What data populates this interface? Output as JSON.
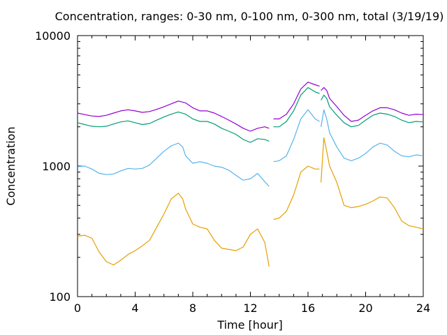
{
  "chart_data": {
    "type": "line",
    "title": "Concentration, ranges: 0-30 nm, 0-100 nm, 0-300 nm, total (3/19/19)",
    "xlabel": "Time [hour]",
    "ylabel": "Concentration",
    "xlim": [
      0,
      24
    ],
    "ylim": [
      100,
      10000
    ],
    "y_scale": "log",
    "grid": false,
    "x_ticks": [
      0,
      4,
      8,
      12,
      16,
      20,
      24
    ],
    "x_tick_labels": [
      "0",
      "4",
      "8",
      "12",
      "16",
      "20",
      "24"
    ],
    "y_ticks": [
      100,
      1000,
      10000
    ],
    "y_tick_labels": [
      "100",
      "1000",
      "10000"
    ],
    "series": [
      {
        "color": "#9400d3",
        "segments": [
          [
            [
              0,
              2550
            ],
            [
              0.5,
              2480
            ],
            [
              1,
              2420
            ],
            [
              1.5,
              2400
            ],
            [
              2,
              2450
            ],
            [
              2.5,
              2550
            ],
            [
              3,
              2650
            ],
            [
              3.5,
              2700
            ],
            [
              4,
              2650
            ],
            [
              4.5,
              2580
            ],
            [
              5,
              2620
            ],
            [
              5.5,
              2720
            ],
            [
              6,
              2850
            ],
            [
              6.5,
              3000
            ],
            [
              7,
              3150
            ],
            [
              7.5,
              3050
            ],
            [
              8,
              2800
            ],
            [
              8.5,
              2650
            ],
            [
              9,
              2650
            ],
            [
              9.5,
              2550
            ],
            [
              10,
              2400
            ],
            [
              10.5,
              2250
            ],
            [
              11,
              2100
            ],
            [
              11.5,
              1950
            ],
            [
              12,
              1850
            ],
            [
              12.5,
              1950
            ],
            [
              13,
              2000
            ],
            [
              13.3,
              1950
            ]
          ],
          [
            [
              13.6,
              2300
            ],
            [
              14,
              2300
            ],
            [
              14.5,
              2500
            ],
            [
              15,
              3000
            ],
            [
              15.5,
              3900
            ],
            [
              16,
              4400
            ],
            [
              16.5,
              4200
            ],
            [
              16.8,
              4100
            ]
          ],
          [
            [
              16.9,
              3800
            ],
            [
              17.1,
              4000
            ],
            [
              17.3,
              3800
            ],
            [
              17.5,
              3300
            ],
            [
              18,
              2850
            ],
            [
              18.5,
              2450
            ],
            [
              19,
              2200
            ],
            [
              19.5,
              2250
            ],
            [
              20,
              2450
            ],
            [
              20.5,
              2650
            ],
            [
              21,
              2800
            ],
            [
              21.5,
              2800
            ],
            [
              22,
              2700
            ],
            [
              22.5,
              2550
            ],
            [
              23,
              2450
            ],
            [
              23.5,
              2500
            ],
            [
              24,
              2480
            ]
          ]
        ]
      },
      {
        "color": "#009e73",
        "segments": [
          [
            [
              0,
              2150
            ],
            [
              0.5,
              2080
            ],
            [
              1,
              2020
            ],
            [
              1.5,
              2000
            ],
            [
              2,
              2020
            ],
            [
              2.5,
              2100
            ],
            [
              3,
              2180
            ],
            [
              3.5,
              2220
            ],
            [
              4,
              2150
            ],
            [
              4.5,
              2080
            ],
            [
              5,
              2120
            ],
            [
              5.5,
              2250
            ],
            [
              6,
              2380
            ],
            [
              6.5,
              2500
            ],
            [
              7,
              2600
            ],
            [
              7.5,
              2500
            ],
            [
              8,
              2300
            ],
            [
              8.5,
              2200
            ],
            [
              9,
              2200
            ],
            [
              9.5,
              2100
            ],
            [
              10,
              1950
            ],
            [
              10.5,
              1850
            ],
            [
              11,
              1750
            ],
            [
              11.5,
              1600
            ],
            [
              12,
              1520
            ],
            [
              12.5,
              1620
            ],
            [
              13,
              1600
            ],
            [
              13.3,
              1550
            ]
          ],
          [
            [
              13.6,
              2000
            ],
            [
              14,
              2000
            ],
            [
              14.5,
              2200
            ],
            [
              15,
              2650
            ],
            [
              15.5,
              3500
            ],
            [
              16,
              4000
            ],
            [
              16.5,
              3700
            ],
            [
              16.8,
              3600
            ]
          ],
          [
            [
              16.9,
              3200
            ],
            [
              17.1,
              3500
            ],
            [
              17.3,
              3300
            ],
            [
              17.5,
              2850
            ],
            [
              18,
              2450
            ],
            [
              18.5,
              2150
            ],
            [
              19,
              2000
            ],
            [
              19.5,
              2050
            ],
            [
              20,
              2250
            ],
            [
              20.5,
              2450
            ],
            [
              21,
              2550
            ],
            [
              21.5,
              2500
            ],
            [
              22,
              2400
            ],
            [
              22.5,
              2250
            ],
            [
              23,
              2150
            ],
            [
              23.5,
              2200
            ],
            [
              24,
              2180
            ]
          ]
        ]
      },
      {
        "color": "#56b4e9",
        "segments": [
          [
            [
              0,
              990
            ],
            [
              0.5,
              1000
            ],
            [
              1,
              950
            ],
            [
              1.5,
              880
            ],
            [
              2,
              860
            ],
            [
              2.5,
              870
            ],
            [
              3,
              920
            ],
            [
              3.5,
              960
            ],
            [
              4,
              950
            ],
            [
              4.5,
              960
            ],
            [
              5,
              1020
            ],
            [
              5.5,
              1150
            ],
            [
              6,
              1300
            ],
            [
              6.5,
              1430
            ],
            [
              7,
              1500
            ],
            [
              7.3,
              1400
            ],
            [
              7.5,
              1200
            ],
            [
              8,
              1050
            ],
            [
              8.5,
              1080
            ],
            [
              9,
              1050
            ],
            [
              9.5,
              1000
            ],
            [
              10,
              980
            ],
            [
              10.5,
              930
            ],
            [
              11,
              850
            ],
            [
              11.5,
              780
            ],
            [
              12,
              800
            ],
            [
              12.5,
              880
            ],
            [
              13,
              760
            ],
            [
              13.3,
              700
            ]
          ],
          [
            [
              13.6,
              1080
            ],
            [
              14,
              1100
            ],
            [
              14.5,
              1200
            ],
            [
              15,
              1600
            ],
            [
              15.5,
              2300
            ],
            [
              16,
              2700
            ],
            [
              16.5,
              2300
            ],
            [
              16.8,
              2200
            ]
          ],
          [
            [
              16.9,
              2000
            ],
            [
              17.1,
              2700
            ],
            [
              17.3,
              2300
            ],
            [
              17.5,
              1800
            ],
            [
              18,
              1400
            ],
            [
              18.5,
              1150
            ],
            [
              19,
              1100
            ],
            [
              19.5,
              1150
            ],
            [
              20,
              1250
            ],
            [
              20.5,
              1400
            ],
            [
              21,
              1500
            ],
            [
              21.5,
              1450
            ],
            [
              22,
              1300
            ],
            [
              22.5,
              1200
            ],
            [
              23,
              1180
            ],
            [
              23.5,
              1220
            ],
            [
              24,
              1200
            ]
          ]
        ]
      },
      {
        "color": "#e69f00",
        "segments": [
          [
            [
              0,
              290
            ],
            [
              0.5,
              295
            ],
            [
              1,
              280
            ],
            [
              1.5,
              220
            ],
            [
              2,
              185
            ],
            [
              2.5,
              175
            ],
            [
              3,
              190
            ],
            [
              3.5,
              210
            ],
            [
              4,
              225
            ],
            [
              4.5,
              245
            ],
            [
              5,
              270
            ],
            [
              5.5,
              340
            ],
            [
              6,
              430
            ],
            [
              6.5,
              560
            ],
            [
              7,
              620
            ],
            [
              7.3,
              560
            ],
            [
              7.5,
              470
            ],
            [
              8,
              360
            ],
            [
              8.5,
              340
            ],
            [
              9,
              330
            ],
            [
              9.5,
              270
            ],
            [
              10,
              235
            ],
            [
              10.5,
              230
            ],
            [
              11,
              225
            ],
            [
              11.5,
              240
            ],
            [
              12,
              300
            ],
            [
              12.5,
              330
            ],
            [
              13,
              260
            ],
            [
              13.3,
              170
            ]
          ],
          [
            [
              13.6,
              390
            ],
            [
              14,
              400
            ],
            [
              14.5,
              450
            ],
            [
              15,
              600
            ],
            [
              15.5,
              900
            ],
            [
              16,
              1000
            ],
            [
              16.5,
              950
            ],
            [
              16.8,
              950
            ]
          ],
          [
            [
              16.9,
              750
            ],
            [
              17.1,
              1650
            ],
            [
              17.3,
              1300
            ],
            [
              17.5,
              1000
            ],
            [
              18,
              750
            ],
            [
              18.5,
              500
            ],
            [
              19,
              480
            ],
            [
              19.5,
              490
            ],
            [
              20,
              510
            ],
            [
              20.5,
              540
            ],
            [
              21,
              580
            ],
            [
              21.5,
              570
            ],
            [
              22,
              480
            ],
            [
              22.5,
              380
            ],
            [
              23,
              350
            ],
            [
              23.5,
              340
            ],
            [
              24,
              330
            ]
          ]
        ]
      }
    ]
  }
}
